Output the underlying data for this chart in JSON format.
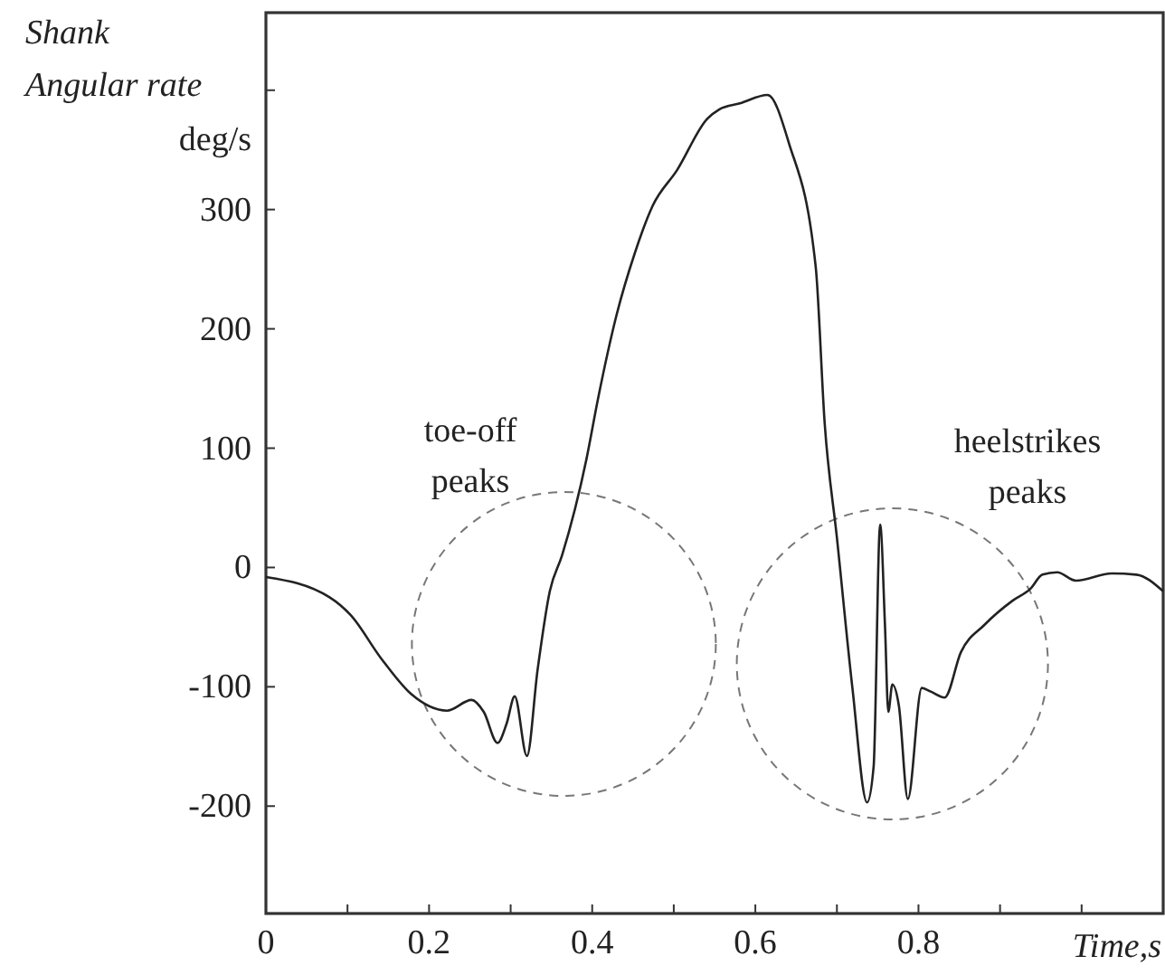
{
  "chart_data": {
    "type": "line",
    "ylabel": "Shank Angular rate deg/s",
    "xlabel": "Time,s",
    "xlim": [
      0,
      1.1
    ],
    "ylim": [
      -290,
      465
    ],
    "xticks": [
      0,
      {
        "value": 0.1,
        "label": null
      },
      0.2,
      {
        "value": 0.3,
        "label": null
      },
      0.4,
      {
        "value": 0.5,
        "label": null
      },
      0.6,
      {
        "value": 0.7,
        "label": null
      },
      0.8,
      {
        "value": 0.9,
        "label": null
      },
      {
        "value": 1.0,
        "label": null
      }
    ],
    "yticks": [
      -200,
      -100,
      0,
      100,
      200,
      300,
      {
        "value": 400,
        "label": null
      }
    ],
    "annotations": [
      "toe-off peaks",
      "heelstrikes peaks"
    ],
    "series": [
      {
        "color": "#222222",
        "x": [
          0,
          0.078,
          0.104,
          0.141,
          0.178,
          0.222,
          0.252,
          0.267,
          0.284,
          0.295,
          0.305,
          0.32,
          0.333,
          0.348,
          0.363,
          0.393,
          0.407,
          0.43,
          0.452,
          0.474,
          0.504,
          0.541,
          0.556,
          0.581,
          0.615,
          0.641,
          0.674,
          0.685,
          0.7,
          0.719,
          0.737,
          0.745,
          0.753,
          0.759,
          0.763,
          0.768,
          0.776,
          0.787,
          0.804,
          0.815,
          0.832,
          0.852,
          0.881,
          0.915,
          0.937,
          0.952,
          0.97,
          0.993,
          1.037,
          1.067,
          1.1
        ],
        "values": [
          -8,
          -25,
          -40,
          -76,
          -106,
          -120,
          -111,
          -121,
          -147,
          -131,
          -108,
          -158,
          -86,
          -20,
          10,
          91,
          141,
          212,
          263,
          303,
          333,
          376,
          384,
          389,
          396,
          356,
          252,
          121,
          25,
          -101,
          -197,
          -167,
          36,
          -50,
          -121,
          -98,
          -116,
          -194,
          -101,
          -104,
          -109,
          -71,
          -48,
          -28,
          -18,
          -6,
          -4,
          -11,
          -5,
          -6,
          -20
        ]
      }
    ]
  }
}
